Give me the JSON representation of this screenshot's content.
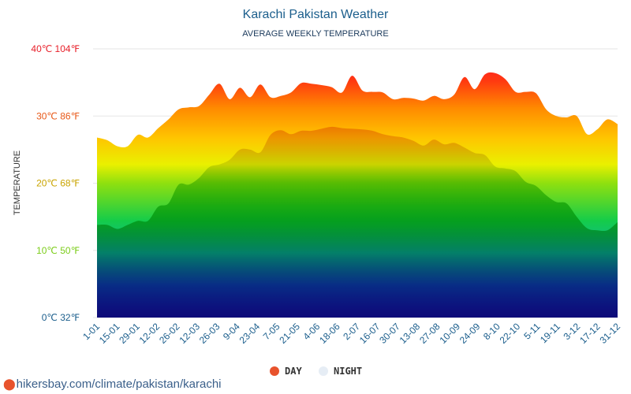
{
  "chart_data": {
    "type": "area",
    "title": "Karachi Pakistan Weather",
    "subtitle": "AVERAGE WEEKLY TEMPERATURE",
    "ylabel": "TEMPERATURE",
    "ylim": [
      0,
      40
    ],
    "y_ticks": [
      {
        "value": 0,
        "label": "0℃ 32℉",
        "color": "#1b5e8c"
      },
      {
        "value": 10,
        "label": "10℃ 50℉",
        "color": "#7ccd1a"
      },
      {
        "value": 20,
        "label": "20℃ 68℉",
        "color": "#c9a400"
      },
      {
        "value": 30,
        "label": "30℃ 86℉",
        "color": "#e85a1a"
      },
      {
        "value": 40,
        "label": "40℃ 104℉",
        "color": "#e8202a"
      }
    ],
    "x_labels": [
      "1-01",
      "15-01",
      "29-01",
      "12-02",
      "26-02",
      "12-03",
      "26-03",
      "9-04",
      "23-04",
      "7-05",
      "21-05",
      "4-06",
      "18-06",
      "2-07",
      "16-07",
      "30-07",
      "13-08",
      "27-08",
      "10-09",
      "24-09",
      "8-10",
      "22-10",
      "5-11",
      "19-11",
      "3-12",
      "17-12",
      "31-12"
    ],
    "series": [
      {
        "name": "DAY",
        "color": "#e8532d",
        "values": [
          26.8,
          26.4,
          25.5,
          25.5,
          27.2,
          26.8,
          28.2,
          29.5,
          31.0,
          31.3,
          31.5,
          33.2,
          34.8,
          32.5,
          34.2,
          32.8,
          34.7,
          32.8,
          33.0,
          33.5,
          34.9,
          34.8,
          34.6,
          34.3,
          33.5,
          36.0,
          33.8,
          33.6,
          33.5,
          32.5,
          32.7,
          32.6,
          32.3,
          33.0,
          32.5,
          33.2,
          35.8,
          34.0,
          36.2,
          36.4,
          35.5,
          33.6,
          33.6,
          33.4,
          31.0,
          30.0,
          29.8,
          30.0,
          27.3,
          28.0,
          29.5,
          28.8
        ]
      },
      {
        "name": "NIGHT",
        "color": "#e6edf5",
        "values": [
          13.8,
          13.8,
          13.2,
          13.8,
          14.4,
          14.4,
          16.5,
          17.0,
          19.8,
          19.8,
          20.8,
          22.4,
          22.8,
          23.5,
          25.0,
          25.0,
          24.6,
          27.2,
          27.9,
          27.3,
          27.8,
          27.8,
          28.1,
          28.4,
          28.2,
          28.1,
          28.0,
          27.8,
          27.3,
          27.0,
          26.8,
          26.3,
          25.6,
          26.5,
          25.8,
          26.0,
          25.3,
          24.5,
          24.2,
          22.5,
          22.2,
          21.8,
          20.2,
          19.6,
          18.2,
          17.2,
          17.0,
          15.0,
          13.3,
          13.0,
          13.0,
          14.2
        ]
      }
    ],
    "legend": {
      "position": "bottom-center",
      "items": [
        {
          "label": "DAY",
          "color": "#e8532d"
        },
        {
          "label": "NIGHT",
          "color": "#e6edf5"
        }
      ]
    },
    "grid": true
  },
  "source_text": "hikersbay.com/climate/pakistan/karachi"
}
